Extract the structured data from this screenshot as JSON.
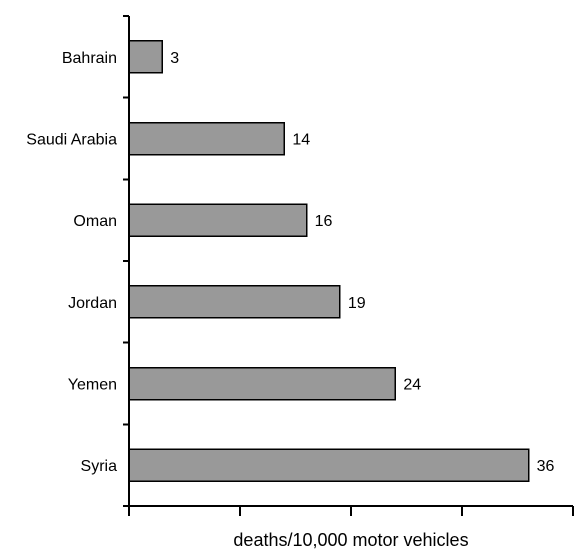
{
  "chart_data": {
    "type": "bar",
    "orientation": "horizontal",
    "categories": [
      "Bahrain",
      "Saudi Arabia",
      "Oman",
      "Jordan",
      "Yemen",
      "Syria"
    ],
    "values": [
      3,
      14,
      16,
      19,
      24,
      36
    ],
    "data_labels": [
      "3",
      "14",
      "16",
      "19",
      "24",
      "36"
    ],
    "xlabel": "deaths/10,000 motor vehicles",
    "ylabel": "",
    "title": "",
    "xlim": [
      0,
      40
    ],
    "x_tick_labels": [],
    "grid": false,
    "legend": "none",
    "colors": {
      "bar_fill": "#999999",
      "bar_stroke": "#000000",
      "axis": "#000000",
      "text": "#000000",
      "background": "#ffffff"
    }
  }
}
